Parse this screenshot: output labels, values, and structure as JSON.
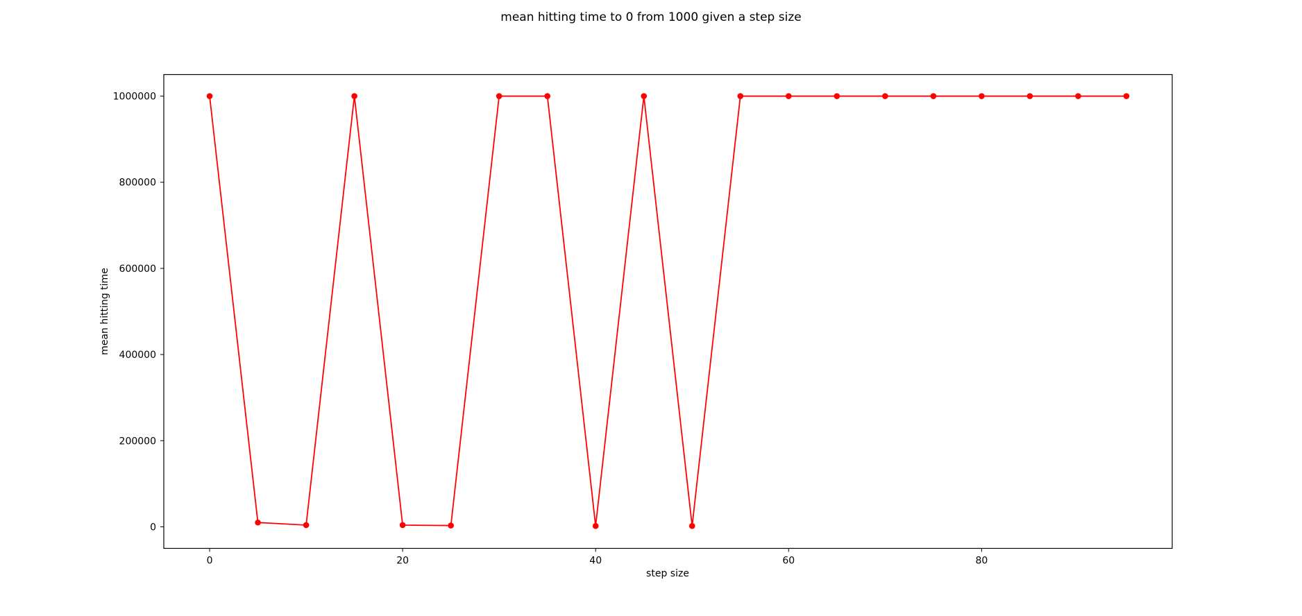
{
  "chart_data": {
    "type": "line",
    "title": "mean hitting time to 0 from 1000 given a step size",
    "xlabel": "step size",
    "ylabel": "mean hitting time",
    "xlim": [
      -4.75,
      99.75
    ],
    "ylim": [
      -50000,
      1050000
    ],
    "xticks": [
      0,
      20,
      40,
      60,
      80
    ],
    "yticks": [
      0,
      200000,
      400000,
      600000,
      800000,
      1000000
    ],
    "grid": false,
    "series": [
      {
        "color": "#ff0000",
        "marker": "circle",
        "x": [
          0,
          5,
          10,
          15,
          20,
          25,
          30,
          35,
          40,
          45,
          50,
          55,
          60,
          65,
          70,
          75,
          80,
          85,
          90,
          95
        ],
        "y": [
          1000000,
          10000,
          4000,
          1000000,
          4000,
          3000,
          1000000,
          1000000,
          2000,
          1000000,
          2000,
          1000000,
          1000000,
          1000000,
          1000000,
          1000000,
          1000000,
          1000000,
          1000000,
          1000000
        ]
      }
    ]
  }
}
